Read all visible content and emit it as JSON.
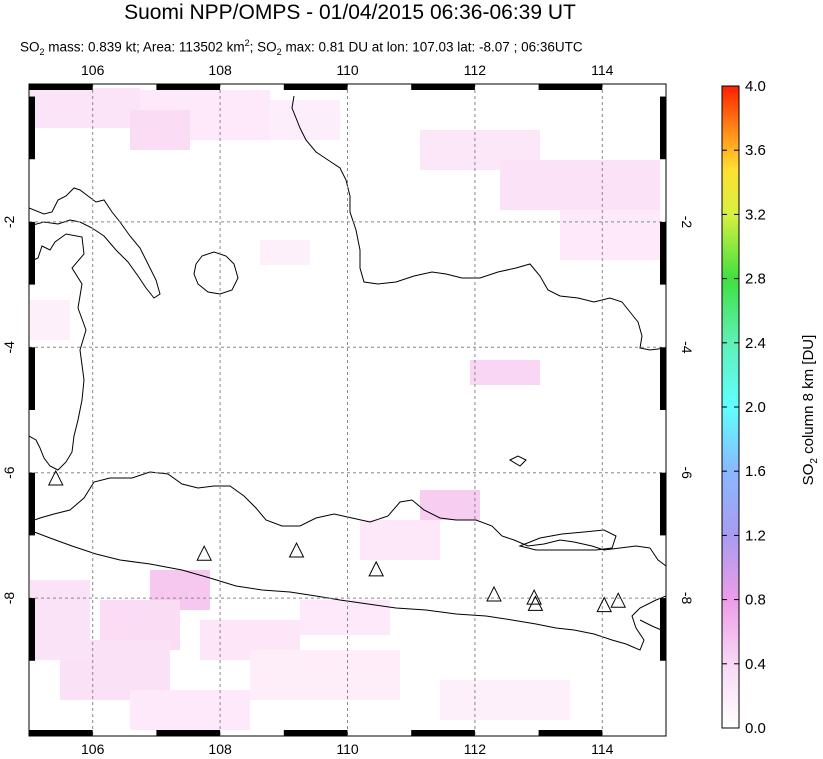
{
  "title": "Suomi NPP/OMPS - 01/04/2015 06:36-06:39 UT",
  "subtitle": {
    "pre": "SO",
    "sub2": "2",
    "mass": " mass: 0.839 kt; Area: 113502 km",
    "sup2": "2",
    "so2max_pre": "; SO",
    "sub2b": "2",
    "rest": " max: 0.81 DU at lon: 107.03 lat: -8.07 ; 06:36UTC"
  },
  "map": {
    "lon_ticks": [
      "106",
      "108",
      "110",
      "112",
      "114"
    ],
    "lat_ticks": [
      "-2",
      "-4",
      "-6",
      "-8"
    ],
    "lon_range": [
      105,
      115
    ],
    "lat_range": [
      -10.2,
      0.2
    ]
  },
  "colorbar": {
    "ticks": [
      "4.0",
      "3.6",
      "3.2",
      "2.8",
      "2.4",
      "2.0",
      "1.6",
      "1.2",
      "0.8",
      "0.4",
      "0.0"
    ],
    "label_pre": "SO",
    "label_sub": "2",
    "label_post": " column 8 km [DU]",
    "colors": [
      "#ffffff",
      "#f6c8f4",
      "#c8a0f0",
      "#9f9ff0",
      "#7fc8ff",
      "#60ffff",
      "#70f0b0",
      "#40e040",
      "#c8f040",
      "#ffff30",
      "#ffc020",
      "#ff7010",
      "#ff2000"
    ]
  },
  "volcanoes": [
    {
      "name": "volcano-krakatau",
      "lon": 105.42,
      "lat": -6.1
    },
    {
      "name": "volcano-guntur",
      "lon": 107.75,
      "lat": -7.3
    },
    {
      "name": "volcano-slamet",
      "lon": 109.2,
      "lat": -7.25
    },
    {
      "name": "volcano-merapi",
      "lon": 110.45,
      "lat": -7.55
    },
    {
      "name": "volcano-kelut",
      "lon": 112.3,
      "lat": -7.95
    },
    {
      "name": "volcano-semeru",
      "lon": 112.93,
      "lat": -8.0
    },
    {
      "name": "volcano-semeru-2",
      "lon": 112.95,
      "lat": -8.1
    },
    {
      "name": "volcano-raung",
      "lon": 114.03,
      "lat": -8.12
    },
    {
      "name": "volcano-ijen",
      "lon": 114.25,
      "lat": -8.05
    }
  ]
}
